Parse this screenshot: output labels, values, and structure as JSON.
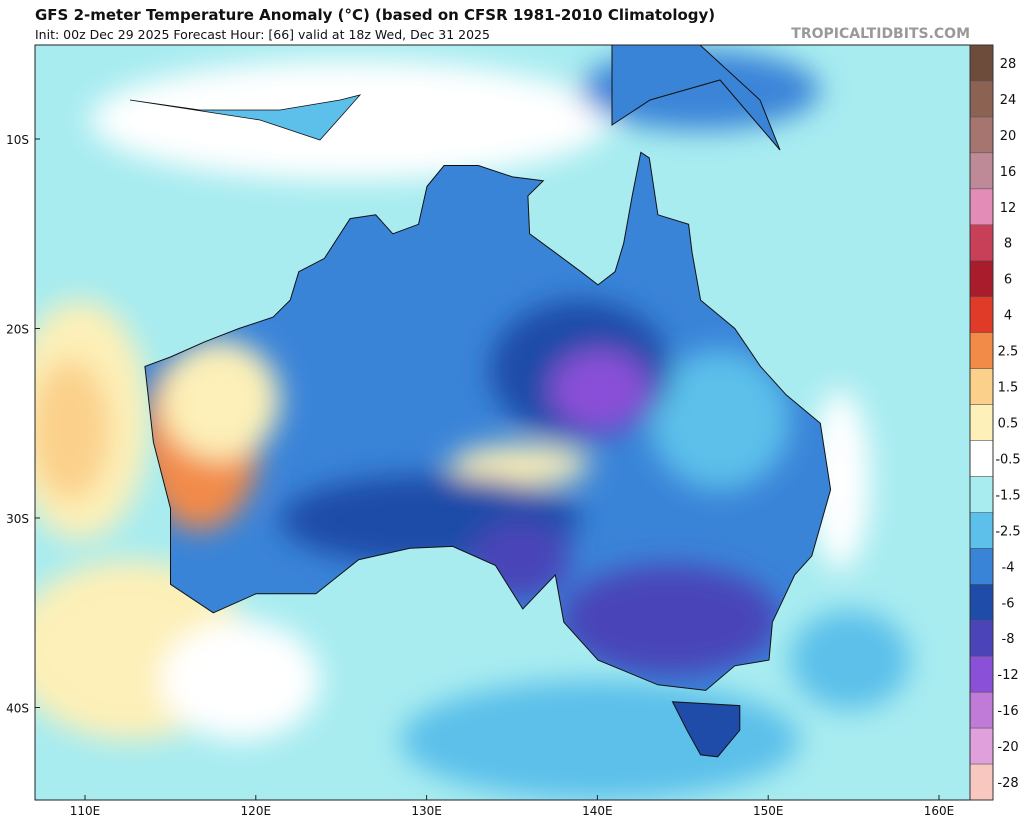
{
  "header": {
    "title": "GFS 2-meter Temperature Anomaly (°C) (based on CFSR 1981-2010 Climatology)",
    "subtitle": "Init: 00z Dec 29 2025   Forecast Hour: [66]   valid at 18z Wed, Dec 31 2025",
    "site": "TROPICALTIDBITS.COM"
  },
  "map": {
    "lat_labels": [
      "10S",
      "20S",
      "30S",
      "40S"
    ],
    "lon_labels": [
      "110E",
      "120E",
      "130E",
      "140E",
      "150E",
      "160E"
    ]
  },
  "colorbar": {
    "labels": [
      28,
      24,
      20,
      16,
      12,
      8,
      6,
      4,
      2.5,
      1.5,
      0.5,
      -0.5,
      -1.5,
      -2.5,
      -4,
      -6,
      -8,
      -12,
      -16,
      -20,
      -28
    ],
    "colors": [
      "#6e4c3c",
      "#8c6253",
      "#a6756f",
      "#bf8a98",
      "#e48cb8",
      "#c84058",
      "#a81c2c",
      "#e03a28",
      "#f28a48",
      "#fbd08a",
      "#fdf0b8",
      "#ffffff",
      "#a8ecf0",
      "#5cc0ea",
      "#3a84d8",
      "#1e4ca8",
      "#4a44b8",
      "#8a50d8",
      "#c07ad8",
      "#e0a0dc",
      "#f8c8c0"
    ]
  }
}
